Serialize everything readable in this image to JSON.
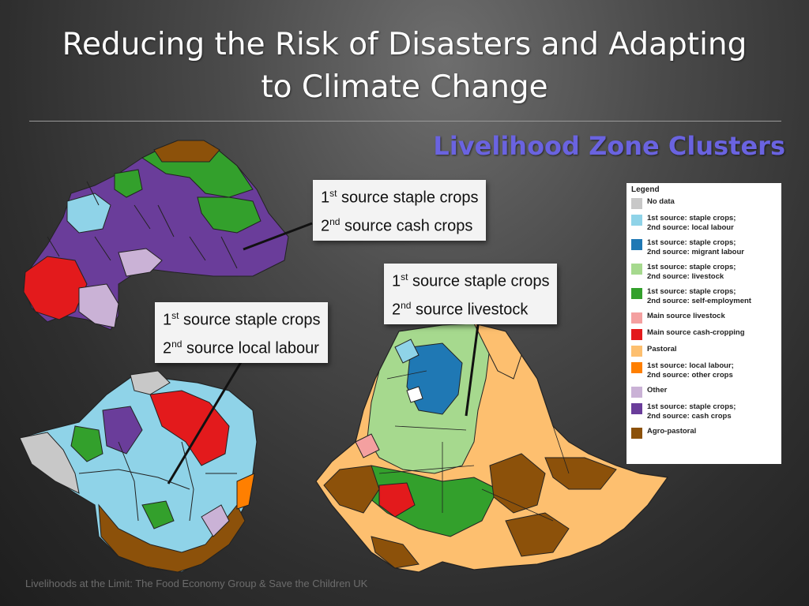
{
  "slide": {
    "title_line1": "Reducing the Risk of Disasters and Adapting",
    "title_line2": "to Climate Change",
    "subtitle": "Livelihood Zone Clusters",
    "footer": "Livelihoods at the Limit: The Food Economy Group & Save the Children UK"
  },
  "callouts": [
    {
      "line1_num": "1",
      "line1_sup": "st",
      "line1_text": " source staple crops",
      "line2_num": "2",
      "line2_sup": "nd",
      "line2_text": " source cash crops"
    },
    {
      "line1_num": "1",
      "line1_sup": "st",
      "line1_text": " source staple crops",
      "line2_num": "2",
      "line2_sup": "nd",
      "line2_text": " source livestock"
    },
    {
      "line1_num": "1",
      "line1_sup": "st",
      "line1_text": " source staple crops",
      "line2_num": "2",
      "line2_sup": "nd",
      "line2_text": " source local labour"
    }
  ],
  "legend": {
    "title": "Legend",
    "items": [
      {
        "l1": "No data",
        "l2": "",
        "color": "#c8c8c8"
      },
      {
        "l1": "1st source: staple crops;",
        "l2": "2nd source: local labour",
        "color": "#8fd3e8"
      },
      {
        "l1": "1st source: staple crops;",
        "l2": "2nd source: migrant labour",
        "color": "#1f78b4"
      },
      {
        "l1": "1st source: staple crops;",
        "l2": "2nd source: livestock",
        "color": "#a6d98e"
      },
      {
        "l1": "1st source: staple crops;",
        "l2": "2nd source: self-employment",
        "color": "#33a02c"
      },
      {
        "l1": "Main source livestock",
        "l2": "",
        "color": "#f4a0a0"
      },
      {
        "l1": "Main source cash-cropping",
        "l2": "",
        "color": "#e31a1c"
      },
      {
        "l1": "Pastoral",
        "l2": "",
        "color": "#fdbf6f"
      },
      {
        "l1": "1st source: local labour;",
        "l2": "2nd source: other crops",
        "color": "#ff7f00"
      },
      {
        "l1": "Other",
        "l2": "",
        "color": "#cab2d6"
      },
      {
        "l1": "1st source: staple crops;",
        "l2": "2nd source: cash crops",
        "color": "#6a3d9a"
      },
      {
        "l1": "Agro-pastoral",
        "l2": "",
        "color": "#8c510a"
      }
    ]
  }
}
